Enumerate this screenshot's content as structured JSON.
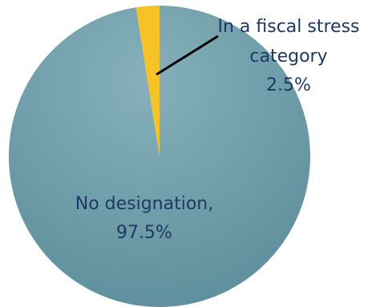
{
  "chart_data": {
    "type": "pie",
    "slices": [
      {
        "name_lines": [
          "In a fiscal stress",
          "category"
        ],
        "value_label": "2.5%",
        "value": 2.5,
        "color": "#f7c12a"
      },
      {
        "name_lines": [
          "No designation,"
        ],
        "value_label": "97.5%",
        "value": 97.5,
        "color": "#6e9eab"
      }
    ],
    "label_color": "#1f3864",
    "leader_line_color": "#000000",
    "start_angle": "12 o'clock, clockwise",
    "legend": "none"
  }
}
